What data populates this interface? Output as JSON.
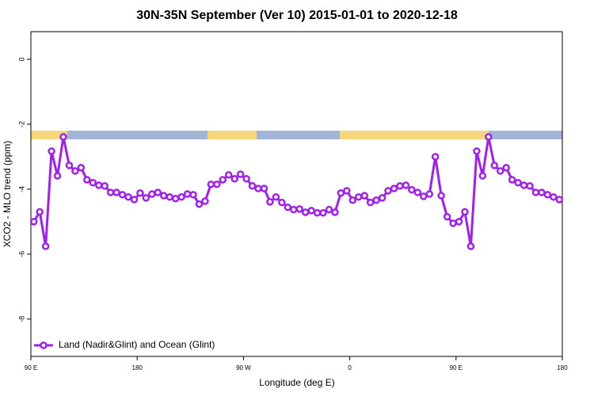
{
  "chart_data": {
    "type": "line",
    "title": "30N-35N September (Ver 10)   2015-01-01 to 2020-12-18",
    "x_label": "Longitude (deg E)",
    "y_label": "XCO2 - MLO trend (ppm)",
    "xlim": [
      90,
      540
    ],
    "ylim": [
      -9.15,
      0.85
    ],
    "xticks": [
      {
        "value": 90,
        "label": "90 E"
      },
      {
        "value": 180,
        "label": "180"
      },
      {
        "value": 270,
        "label": "90 W"
      },
      {
        "value": 360,
        "label": "0"
      },
      {
        "value": 450,
        "label": "90 E"
      },
      {
        "value": 540,
        "label": "180"
      }
    ],
    "yticks": [
      0,
      -2,
      -4,
      -6,
      -8
    ],
    "legend": "bottom-left",
    "x": [
      92.5,
      97.5,
      102.5,
      107.5,
      112.5,
      117.5,
      122.5,
      127.5,
      132.5,
      137.5,
      142.5,
      147.5,
      152.5,
      157.5,
      162.5,
      167.5,
      172.5,
      177.5,
      182.5,
      187.5,
      192.5,
      197.5,
      202.5,
      207.5,
      212.5,
      217.5,
      222.5,
      227.5,
      232.5,
      237.5,
      242.5,
      247.5,
      252.5,
      257.5,
      262.5,
      267.5,
      272.5,
      277.5,
      282.5,
      287.5,
      292.5,
      297.5,
      302.5,
      307.5,
      312.5,
      317.5,
      322.5,
      327.5,
      332.5,
      337.5,
      342.5,
      347.5,
      352.5,
      357.5,
      362.5,
      367.5,
      372.5,
      377.5,
      382.5,
      387.5,
      392.5,
      397.5,
      402.5,
      407.5,
      412.5,
      417.5,
      422.5,
      427.5,
      432.5,
      437.5,
      442.5,
      447.5,
      452.5,
      457.5,
      462.5,
      467.5,
      472.5,
      477.5,
      482.5,
      487.5,
      492.5,
      497.5,
      502.5,
      507.5,
      512.5,
      517.5,
      522.5,
      527.5,
      532.5,
      537.5
    ],
    "series": [
      {
        "name": "Land (Nadir&Glint) and Ocean (Glint)",
        "color": "#a020f0",
        "values": [
          -5.0,
          -4.7,
          -5.76,
          -2.83,
          -3.59,
          -2.39,
          -3.27,
          -3.44,
          -3.34,
          -3.71,
          -3.8,
          -3.88,
          -3.9,
          -4.1,
          -4.1,
          -4.17,
          -4.24,
          -4.32,
          -4.12,
          -4.27,
          -4.15,
          -4.1,
          -4.2,
          -4.24,
          -4.29,
          -4.24,
          -4.15,
          -4.17,
          -4.46,
          -4.37,
          -3.85,
          -3.85,
          -3.71,
          -3.56,
          -3.68,
          -3.54,
          -3.68,
          -3.9,
          -3.98,
          -3.98,
          -4.39,
          -4.24,
          -4.41,
          -4.56,
          -4.63,
          -4.61,
          -4.71,
          -4.66,
          -4.73,
          -4.73,
          -4.63,
          -4.71,
          -4.12,
          -4.05,
          -4.34,
          -4.24,
          -4.2,
          -4.41,
          -4.34,
          -4.27,
          -4.05,
          -3.98,
          -3.9,
          -3.88,
          -4.02,
          -4.1,
          -4.22,
          -4.15,
          -3.0,
          -4.2,
          -4.85,
          -5.05,
          -5.0,
          -4.7,
          -5.76,
          -2.83,
          -3.59,
          -2.39,
          -3.27,
          -3.44,
          -3.34,
          -3.71,
          -3.8,
          -3.88,
          -3.9,
          -4.1,
          -4.1,
          -4.17,
          -4.24,
          -4.32
        ]
      }
    ]
  }
}
